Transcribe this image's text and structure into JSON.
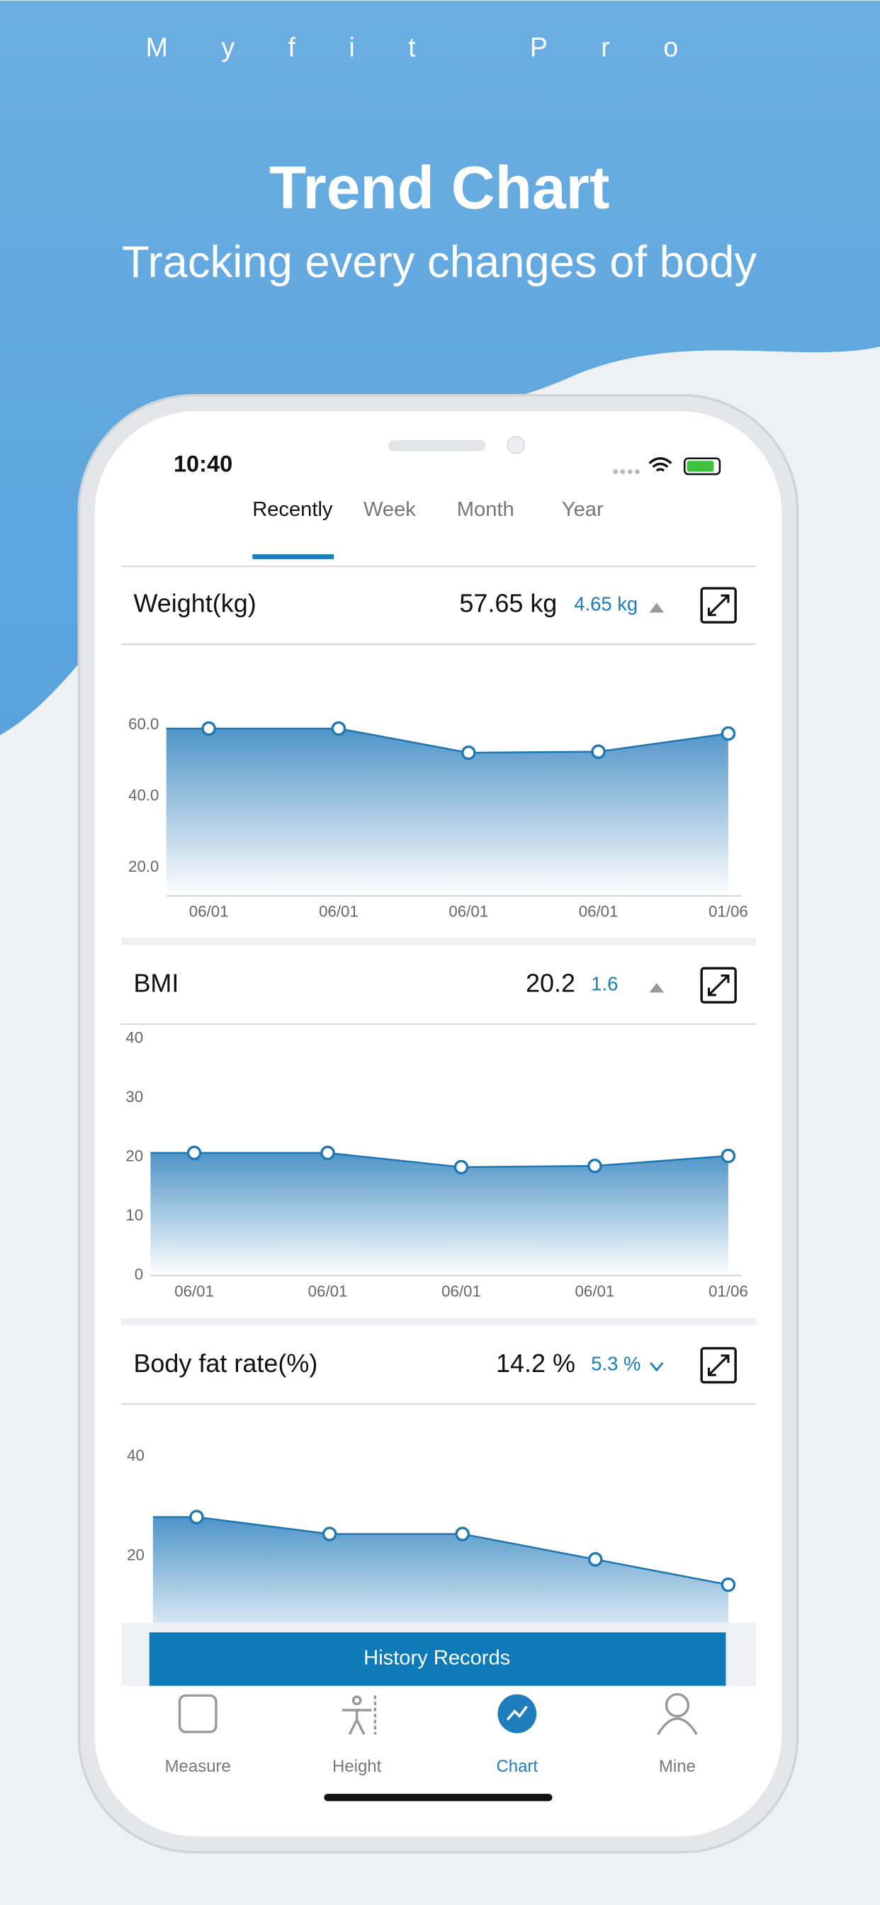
{
  "header": {
    "brand": "Myfit Pro",
    "title": "Trend Chart",
    "subtitle": "Tracking every changes of body"
  },
  "status": {
    "time": "10:40"
  },
  "tabs": [
    "Recently",
    "Week",
    "Month",
    "Year"
  ],
  "charts": [
    {
      "title": "Weight(kg)",
      "value": "57.65 kg",
      "change": "4.65 kg",
      "trend": "up",
      "categories": [
        "06/01",
        "06/01",
        "06/01",
        "06/01",
        "01/06"
      ],
      "values": [
        59,
        59,
        52.2,
        52.5,
        57.6
      ],
      "ylim": [
        12,
        66
      ],
      "yticks": [
        {
          "value": 60,
          "label": "60.0"
        },
        {
          "value": 40,
          "label": "40.0"
        },
        {
          "value": 20,
          "label": "20.0"
        }
      ],
      "color": "#1f78b4"
    },
    {
      "title": "BMI",
      "value": "20.2",
      "change": "1.6",
      "trend": "up",
      "categories": [
        "06/01",
        "06/01",
        "06/01",
        "06/01",
        "01/06"
      ],
      "values": [
        20.7,
        20.7,
        18.3,
        18.5,
        20.2
      ],
      "ylim": [
        0,
        40
      ],
      "yticks": [
        40,
        30,
        20,
        10,
        0
      ],
      "color": "#1f78b4"
    },
    {
      "title": "Body fat rate(%)",
      "value": "14.2 %",
      "change": "5.3 %",
      "trend": "down",
      "values": [
        27.8,
        24.4,
        24.4,
        19.3,
        14.2
      ],
      "ylim": [
        0,
        40
      ],
      "yticks": [
        40,
        20
      ],
      "color": "#1f78b4"
    }
  ],
  "button": "History Records",
  "nav": [
    "Measure",
    "Height",
    "Chart",
    "Mine"
  ]
}
